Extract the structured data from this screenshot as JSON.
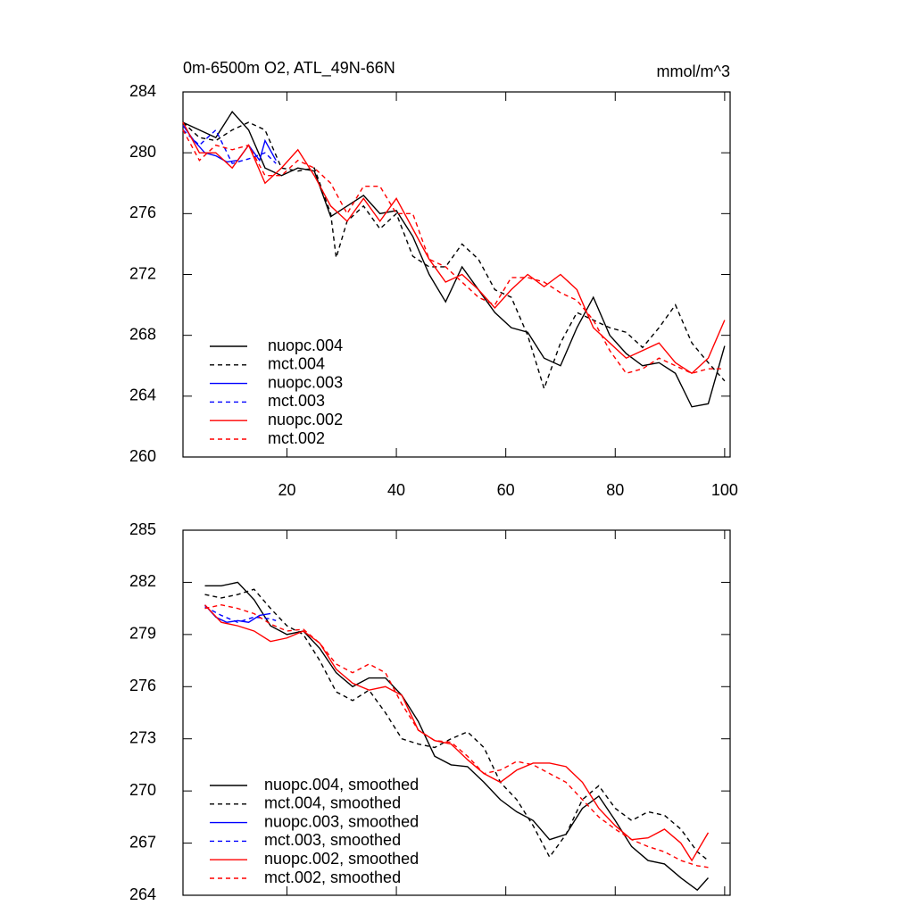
{
  "chart_data": [
    {
      "type": "line",
      "title": "0m-6500m O2, ATL_49N-66N",
      "units_label": "mmol/m^3",
      "xlim": [
        1,
        101
      ],
      "xticks": [
        20,
        40,
        60,
        80,
        100
      ],
      "ylim": [
        260,
        284
      ],
      "yticks": [
        260,
        264,
        268,
        272,
        276,
        280,
        284
      ],
      "legend": "lower left",
      "series": [
        {
          "name": "nuopc.004",
          "color": "#000000",
          "dashed": false,
          "x": [
            1,
            4,
            7,
            10,
            13,
            16,
            19,
            22,
            25,
            28,
            31,
            34,
            37,
            40,
            43,
            46,
            49,
            52,
            55,
            58,
            61,
            64,
            67,
            70,
            73,
            76,
            79,
            82,
            85,
            88,
            91,
            94,
            97,
            100
          ],
          "values": [
            282,
            281.5,
            281,
            282.7,
            281.5,
            279,
            278.5,
            279,
            278.8,
            275.8,
            276.5,
            277.2,
            276,
            276.2,
            274.5,
            272,
            270.2,
            272.5,
            271,
            269.5,
            268.5,
            268.2,
            266.5,
            266,
            268.5,
            270.5,
            268,
            266.8,
            266,
            266.2,
            265.5,
            263.3,
            263.5,
            267.3
          ]
        },
        {
          "name": "mct.004",
          "color": "#000000",
          "dashed": true,
          "x": [
            1,
            4,
            7,
            10,
            13,
            16,
            19,
            22,
            25,
            28,
            29,
            31,
            34,
            37,
            40,
            43,
            46,
            49,
            52,
            55,
            58,
            61,
            64,
            67,
            70,
            73,
            76,
            79,
            82,
            85,
            88,
            91,
            94,
            97,
            100
          ],
          "values": [
            282,
            281,
            280.8,
            281.5,
            282,
            281.5,
            279,
            278.8,
            279,
            276,
            273.1,
            275.5,
            276.5,
            275,
            276,
            273.2,
            272.5,
            272.5,
            274,
            273,
            271,
            270.5,
            268,
            264.5,
            267.5,
            269.5,
            269,
            268.5,
            268.2,
            267.2,
            268.5,
            270,
            267.5,
            266.2,
            265
          ]
        },
        {
          "name": "nuopc.003",
          "color": "#0000ff",
          "dashed": false,
          "x": [
            1,
            3,
            5,
            7,
            9,
            11,
            13,
            15,
            16,
            18
          ],
          "values": [
            281.8,
            280.8,
            280,
            279.8,
            279.4,
            279.5,
            280.5,
            279.5,
            280.8,
            279.5
          ]
        },
        {
          "name": "mct.003",
          "color": "#0000ff",
          "dashed": true,
          "x": [
            1,
            4,
            7,
            10,
            13,
            16,
            18
          ],
          "values": [
            281.5,
            280.5,
            281.5,
            279.3,
            279.6,
            280,
            279.3
          ]
        },
        {
          "name": "nuopc.002",
          "color": "#ff0000",
          "dashed": false,
          "x": [
            1,
            4,
            7,
            10,
            13,
            16,
            19,
            22,
            25,
            28,
            31,
            34,
            37,
            40,
            43,
            46,
            49,
            52,
            55,
            58,
            61,
            64,
            67,
            70,
            73,
            76,
            79,
            82,
            85,
            88,
            91,
            94,
            97,
            100
          ],
          "values": [
            282,
            280,
            280,
            279,
            280.5,
            278,
            279,
            280.2,
            278.5,
            276.5,
            275.5,
            277,
            275.5,
            277,
            275,
            273,
            271.5,
            272,
            271,
            269.8,
            271,
            272,
            271.2,
            272,
            271,
            268.5,
            267.5,
            266.5,
            267,
            267.5,
            266.2,
            265.5,
            266.5,
            269
          ]
        },
        {
          "name": "mct.002",
          "color": "#ff0000",
          "dashed": true,
          "x": [
            1,
            4,
            7,
            10,
            13,
            16,
            19,
            22,
            25,
            28,
            31,
            34,
            37,
            40,
            43,
            46,
            49,
            52,
            55,
            58,
            61,
            64,
            67,
            70,
            73,
            76,
            79,
            82,
            85,
            88,
            91,
            94,
            97,
            100
          ],
          "values": [
            281.5,
            279.5,
            280.5,
            280.2,
            280.5,
            278.5,
            278.5,
            279.5,
            279,
            278,
            276,
            277.8,
            277.8,
            276,
            276,
            273,
            272.5,
            271.5,
            270.5,
            270,
            271.8,
            271.8,
            271.5,
            270.8,
            270.3,
            269,
            267,
            265.5,
            265.8,
            266.5,
            266,
            265.5,
            265.8,
            265.8
          ]
        }
      ]
    },
    {
      "type": "line",
      "xlim": [
        1,
        101
      ],
      "xticks": [
        20,
        40,
        60,
        80,
        100
      ],
      "ylim": [
        264,
        285
      ],
      "yticks": [
        264,
        267,
        270,
        273,
        276,
        279,
        282,
        285
      ],
      "legend": "lower left",
      "series": [
        {
          "name": "nuopc.004, smoothed",
          "color": "#000000",
          "dashed": false,
          "x": [
            5,
            8,
            11,
            14,
            17,
            20,
            23,
            26,
            29,
            32,
            35,
            38,
            41,
            44,
            47,
            50,
            53,
            56,
            59,
            62,
            65,
            68,
            71,
            74,
            77,
            80,
            83,
            86,
            89,
            92,
            95,
            97
          ],
          "values": [
            281.8,
            281.8,
            282,
            281,
            279.5,
            279,
            279.2,
            278.2,
            276.8,
            276,
            276.5,
            276.5,
            275.5,
            274,
            272,
            271.5,
            271.4,
            270.5,
            269.5,
            268.8,
            268.3,
            267.2,
            267.5,
            269,
            269.7,
            268.3,
            266.8,
            266,
            265.8,
            265,
            264.3,
            265
          ]
        },
        {
          "name": "mct.004, smoothed",
          "color": "#000000",
          "dashed": true,
          "x": [
            5,
            8,
            11,
            14,
            17,
            20,
            23,
            26,
            29,
            32,
            35,
            38,
            41,
            44,
            47,
            50,
            53,
            56,
            59,
            62,
            65,
            68,
            71,
            74,
            77,
            80,
            83,
            86,
            89,
            92,
            95,
            97
          ],
          "values": [
            281.3,
            281.1,
            281.3,
            281.6,
            280.5,
            279.5,
            279,
            277.5,
            275.7,
            275.2,
            275.8,
            274.5,
            273,
            272.7,
            272.5,
            273,
            273.4,
            272.5,
            270.5,
            269.5,
            268,
            266.2,
            267.5,
            269.5,
            270.3,
            269,
            268.3,
            268.8,
            268.6,
            267.8,
            266.5,
            266
          ]
        },
        {
          "name": "nuopc.003, smoothed",
          "color": "#0000ff",
          "dashed": false,
          "x": [
            5,
            7,
            9,
            11,
            13,
            15,
            17
          ],
          "values": [
            280.7,
            280,
            279.7,
            279.8,
            279.7,
            280.1,
            280.2
          ]
        },
        {
          "name": "mct.003, smoothed",
          "color": "#0000ff",
          "dashed": true,
          "x": [
            5,
            8,
            11,
            14,
            17,
            18
          ],
          "values": [
            280.6,
            280.1,
            279.7,
            280,
            279.9,
            279.8
          ]
        },
        {
          "name": "nuopc.002, smoothed",
          "color": "#ff0000",
          "dashed": false,
          "x": [
            5,
            8,
            11,
            14,
            17,
            20,
            23,
            26,
            29,
            32,
            35,
            38,
            41,
            44,
            47,
            50,
            53,
            56,
            59,
            62,
            65,
            68,
            71,
            74,
            77,
            80,
            83,
            86,
            89,
            92,
            94,
            97
          ],
          "values": [
            280.7,
            279.7,
            279.5,
            279.2,
            278.6,
            278.8,
            279.2,
            278.5,
            277,
            276.2,
            275.8,
            276,
            275.5,
            273.5,
            272.9,
            272.7,
            271.8,
            271,
            270.5,
            271.2,
            271.6,
            271.6,
            271.4,
            270.5,
            269,
            268,
            267.2,
            267.3,
            267.8,
            267,
            266,
            267.6
          ]
        },
        {
          "name": "mct.002, smoothed",
          "color": "#ff0000",
          "dashed": true,
          "x": [
            5,
            8,
            11,
            14,
            17,
            20,
            23,
            26,
            29,
            32,
            35,
            38,
            41,
            44,
            47,
            50,
            53,
            56,
            59,
            62,
            65,
            68,
            71,
            74,
            77,
            80,
            83,
            86,
            89,
            92,
            95,
            97
          ],
          "values": [
            280.5,
            280.7,
            280.5,
            280.2,
            279.6,
            279.2,
            279.3,
            278.5,
            277.3,
            276.8,
            277.3,
            276.8,
            275,
            273.5,
            272.9,
            272.8,
            272,
            271,
            271.2,
            271.7,
            271.5,
            271,
            270.5,
            269.5,
            268.5,
            267.8,
            267.2,
            266.8,
            266.5,
            266,
            265.7,
            265.6
          ]
        }
      ]
    }
  ]
}
